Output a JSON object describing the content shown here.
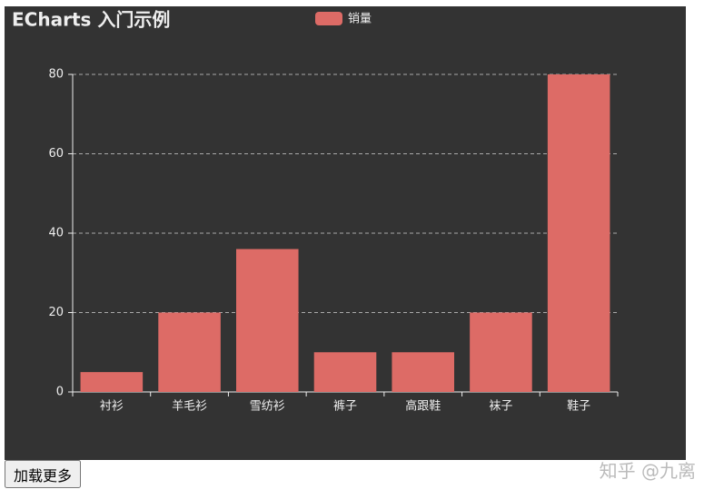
{
  "chart_data": {
    "type": "bar",
    "title": "ECharts 入门示例",
    "categories": [
      "衬衫",
      "羊毛衫",
      "雪纺衫",
      "裤子",
      "高跟鞋",
      "袜子",
      "鞋子"
    ],
    "series": [
      {
        "name": "销量",
        "color": "#dd6b66",
        "values": [
          5,
          20,
          36,
          10,
          10,
          20,
          80
        ]
      }
    ],
    "ylim": [
      0,
      80
    ],
    "yticks": [
      0,
      20,
      40,
      60,
      80
    ],
    "grid": true,
    "legend": "top"
  },
  "button": {
    "label": "加载更多"
  },
  "watermark": "知乎 @九离"
}
